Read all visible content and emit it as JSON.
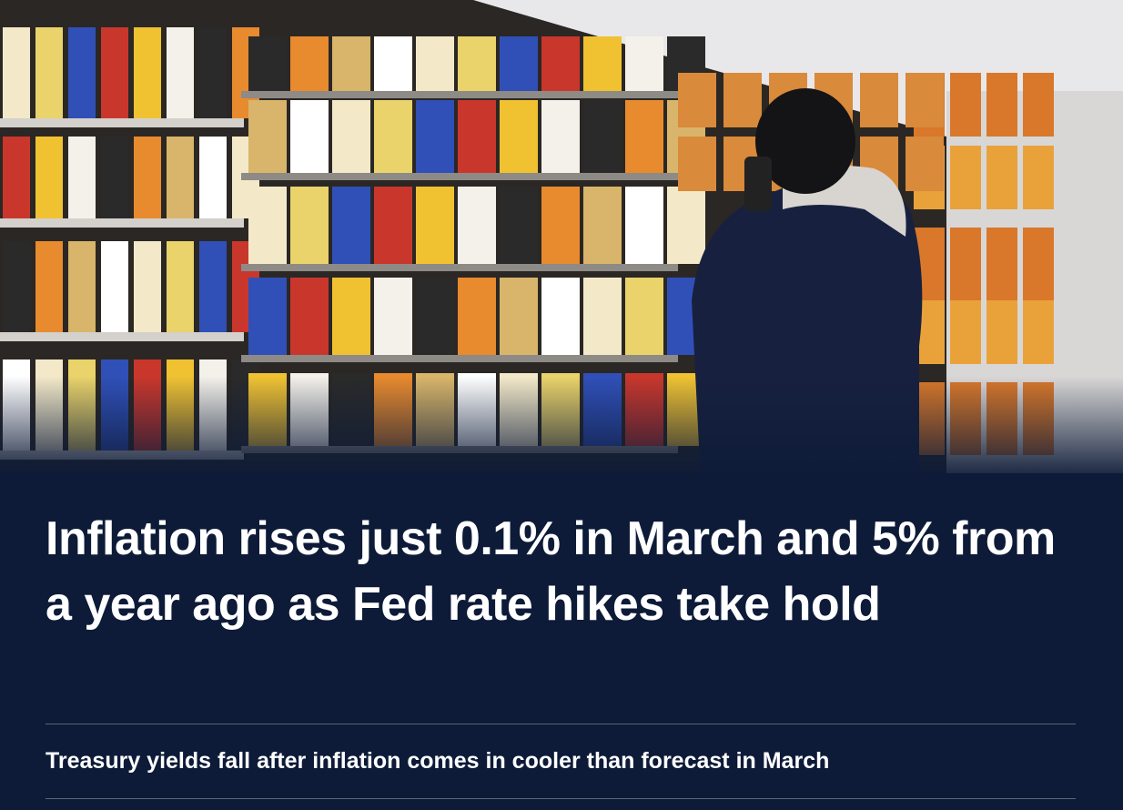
{
  "headline": "Inflation rises just 0.1% in March and 5% from a year ago as Fed rate hikes take hold",
  "related_links": [
    "Treasury yields fall after inflation comes in cooler than forecast in March"
  ]
}
